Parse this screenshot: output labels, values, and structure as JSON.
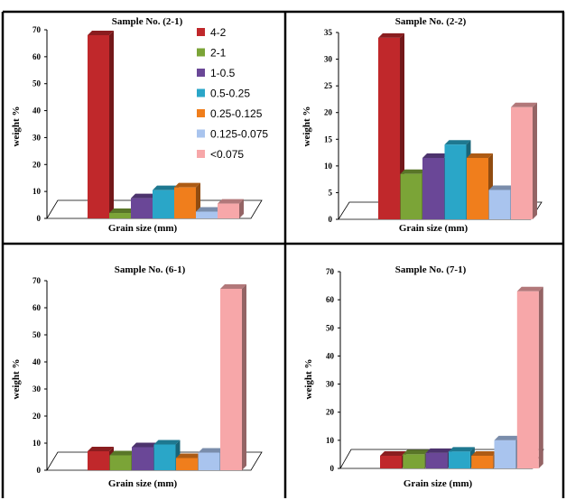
{
  "legend": [
    {
      "label": "4-2",
      "color": "#C0282B"
    },
    {
      "label": "2-1",
      "color": "#7BA437"
    },
    {
      "label": "1-0.5",
      "color": "#6A4797"
    },
    {
      "label": "0.5-0.25",
      "color": "#2AA6C8"
    },
    {
      "label": "0.25-0.125",
      "color": "#F07E1C"
    },
    {
      "label": "0.125-0.075",
      "color": "#A9C4EE"
    },
    {
      "label": "<0.075",
      "color": "#F7A7A9"
    }
  ],
  "chart_data": [
    {
      "type": "bar",
      "title": "Sample No. (2-1)",
      "xlabel": "Grain size (mm)",
      "ylabel": "weight %",
      "ylim": [
        0,
        70
      ],
      "yticks": [
        0,
        10,
        20,
        30,
        40,
        50,
        60,
        70
      ],
      "categories": [
        "4-2",
        "2-1",
        "1-0.5",
        "0.5-0.25",
        "0.25-0.125",
        "0.125-0.075",
        "<0.075"
      ],
      "values": [
        68,
        2,
        7.5,
        10.5,
        11.5,
        2.5,
        5.5
      ]
    },
    {
      "type": "bar",
      "title": "Sample No. (2-2)",
      "xlabel": "Grain size (mm)",
      "ylabel": "weight %",
      "ylim": [
        0,
        35
      ],
      "yticks": [
        0,
        5,
        10,
        15,
        20,
        25,
        30,
        35
      ],
      "categories": [
        "4-2",
        "2-1",
        "1-0.5",
        "0.5-0.25",
        "0.25-0.125",
        "0.125-0.075",
        "<0.075"
      ],
      "values": [
        34,
        8.5,
        11.5,
        14,
        11.5,
        5.5,
        21
      ]
    },
    {
      "type": "bar",
      "title": "Sample No. (6-1)",
      "xlabel": "Grain size (mm)",
      "ylabel": "weight %",
      "ylim": [
        0,
        70
      ],
      "yticks": [
        0,
        10,
        20,
        30,
        40,
        50,
        60,
        70
      ],
      "categories": [
        "4-2",
        "2-1",
        "1-0.5",
        "0.5-0.25",
        "0.25-0.125",
        "0.125-0.075",
        "<0.075"
      ],
      "values": [
        7,
        5.5,
        8.5,
        9.5,
        4.5,
        6.5,
        67
      ]
    },
    {
      "type": "bar",
      "title": "Sample No. (7-1)",
      "xlabel": "Grain size (mm)",
      "ylabel": "weight %",
      "ylim": [
        0,
        70
      ],
      "yticks": [
        0,
        10,
        20,
        30,
        40,
        50,
        60,
        70
      ],
      "categories": [
        "4-2",
        "2-1",
        "1-0.5",
        "0.5-0.25",
        "0.25-0.125",
        "0.125-0.075",
        "<0.075"
      ],
      "values": [
        4.5,
        5,
        5.5,
        6,
        4.5,
        10,
        63
      ]
    }
  ]
}
